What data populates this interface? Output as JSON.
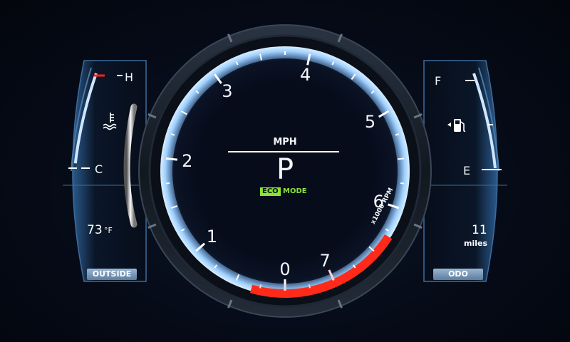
{
  "tachometer": {
    "scale_labels": [
      "0",
      "1",
      "2",
      "3",
      "4",
      "5",
      "6",
      "7"
    ],
    "unit_label": "x1000 RPM",
    "redline_start": 7,
    "max": 8
  },
  "center_display": {
    "speed_unit": "MPH",
    "gear": "P",
    "eco_label": "ECO",
    "mode_label": "MODE"
  },
  "temp_gauge": {
    "hot_label": "H",
    "cold_label": "C",
    "icon": "coolant-temp-icon",
    "level": 0.95
  },
  "outside_temp": {
    "value": "73",
    "unit": "°F",
    "caption": "OUTSIDE"
  },
  "fuel_gauge": {
    "full_label": "F",
    "empty_label": "E",
    "icon": "fuel-pump-icon",
    "level": 1.0
  },
  "odometer": {
    "value": "11",
    "unit": "miles",
    "caption": "ODO"
  },
  "colors": {
    "ring_glow": "#8ec8ff",
    "redline": "#ff2a1a",
    "eco_green": "#8be23a",
    "tab_blue": "#7f9dbd"
  }
}
